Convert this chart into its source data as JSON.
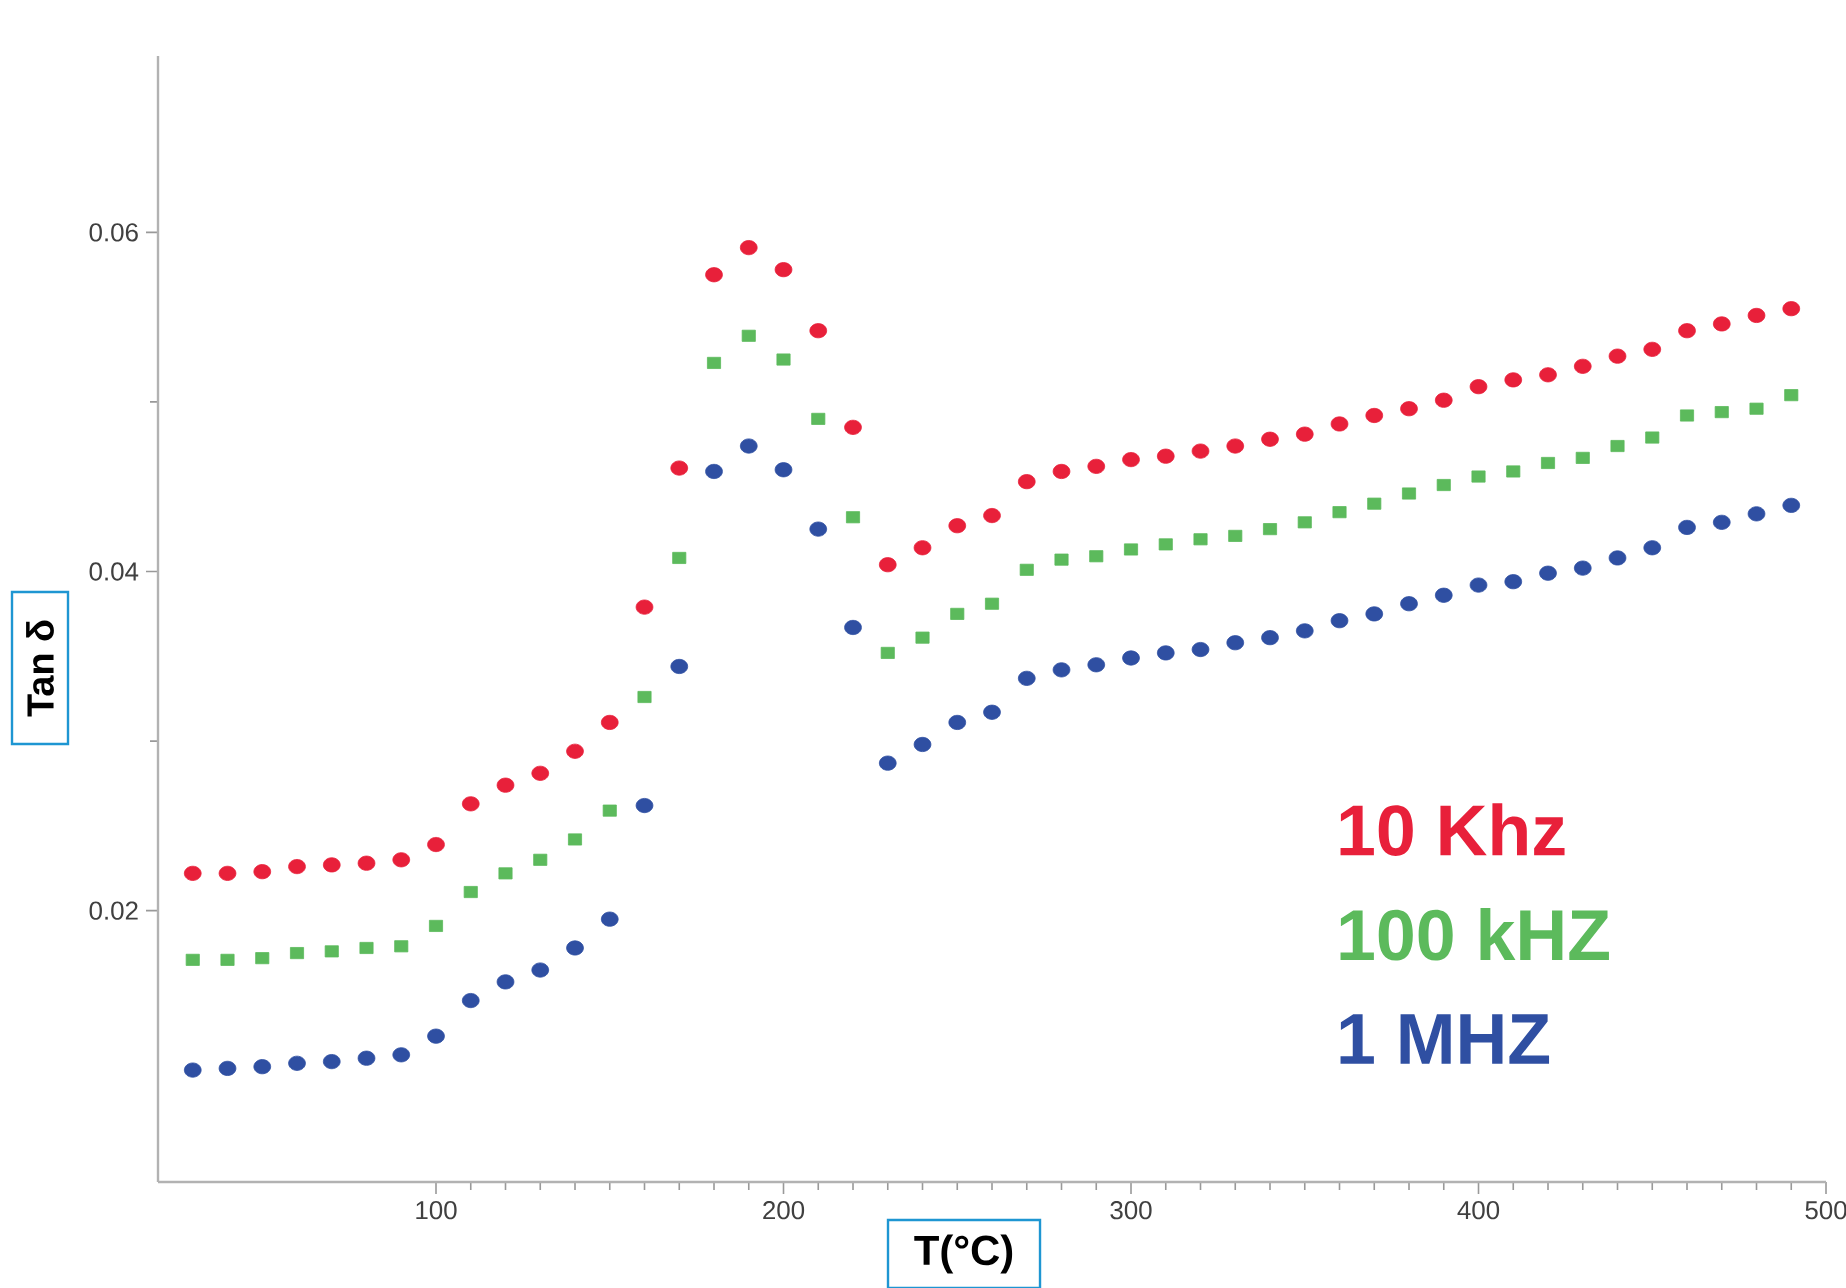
{
  "chart_data": {
    "type": "scatter",
    "xlabel": "T(°C)",
    "ylabel": "Tan δ",
    "xlim": [
      20,
      500
    ],
    "ylim": [
      0.004,
      0.0704
    ],
    "xticks": [
      100,
      200,
      300,
      400,
      500
    ],
    "yticks": [
      0.02,
      0.04,
      0.06
    ],
    "legend": "right",
    "grid": false,
    "x": [
      30,
      40,
      50,
      60,
      70,
      80,
      90,
      100,
      110,
      120,
      130,
      140,
      150,
      160,
      170,
      180,
      190,
      200,
      210,
      220,
      230,
      240,
      250,
      260,
      270,
      280,
      290,
      300,
      310,
      320,
      330,
      340,
      350,
      360,
      370,
      380,
      390,
      400,
      410,
      420,
      430,
      440,
      450,
      460,
      470,
      480,
      490
    ],
    "series": [
      {
        "name": "10 Khz",
        "color": "#e8203a",
        "marker": "circle",
        "values": [
          0.0222,
          0.0222,
          0.0223,
          0.0226,
          0.0227,
          0.0228,
          0.023,
          0.0239,
          0.0263,
          0.0274,
          0.0281,
          0.0294,
          0.0311,
          0.0379,
          0.0461,
          0.0575,
          0.0591,
          0.0578,
          0.0542,
          0.0485,
          0.0404,
          0.0414,
          0.0427,
          0.0433,
          0.0453,
          0.0459,
          0.0462,
          0.0466,
          0.0468,
          0.0471,
          0.0474,
          0.0478,
          0.0481,
          0.0487,
          0.0492,
          0.0496,
          0.0501,
          0.0509,
          0.0513,
          0.0516,
          0.0521,
          0.0527,
          0.0531,
          0.0542,
          0.0546,
          0.0551,
          0.0555
        ]
      },
      {
        "name": "100 kHZ",
        "color": "#5cba5c",
        "marker": "square",
        "values": [
          0.0171,
          0.0171,
          0.0172,
          0.0175,
          0.0176,
          0.0178,
          0.0179,
          0.0191,
          0.0211,
          0.0222,
          0.023,
          0.0242,
          0.0259,
          0.0326,
          0.0408,
          0.0523,
          0.0539,
          0.0525,
          0.049,
          0.0432,
          0.0352,
          0.0361,
          0.0375,
          0.0381,
          0.0401,
          0.0407,
          0.0409,
          0.0413,
          0.0416,
          0.0419,
          0.0421,
          0.0425,
          0.0429,
          0.0435,
          0.044,
          0.0446,
          0.0451,
          0.0456,
          0.0459,
          0.0464,
          0.0467,
          0.0474,
          0.0479,
          0.0492,
          0.0494,
          0.0496,
          0.0504
        ]
      },
      {
        "name": "1 MHZ",
        "color": "#2f4fa2",
        "marker": "circle",
        "values": [
          0.0106,
          0.0107,
          0.0108,
          0.011,
          0.0111,
          0.0113,
          0.0115,
          0.0126,
          0.0147,
          0.0158,
          0.0165,
          0.0178,
          0.0195,
          0.0262,
          0.0344,
          0.0459,
          0.0474,
          0.046,
          0.0425,
          0.0367,
          0.0287,
          0.0298,
          0.0311,
          0.0317,
          0.0337,
          0.0342,
          0.0345,
          0.0349,
          0.0352,
          0.0354,
          0.0358,
          0.0361,
          0.0365,
          0.0371,
          0.0375,
          0.0381,
          0.0386,
          0.0392,
          0.0394,
          0.0399,
          0.0402,
          0.0408,
          0.0414,
          0.0426,
          0.0429,
          0.0434,
          0.0439
        ]
      }
    ]
  }
}
